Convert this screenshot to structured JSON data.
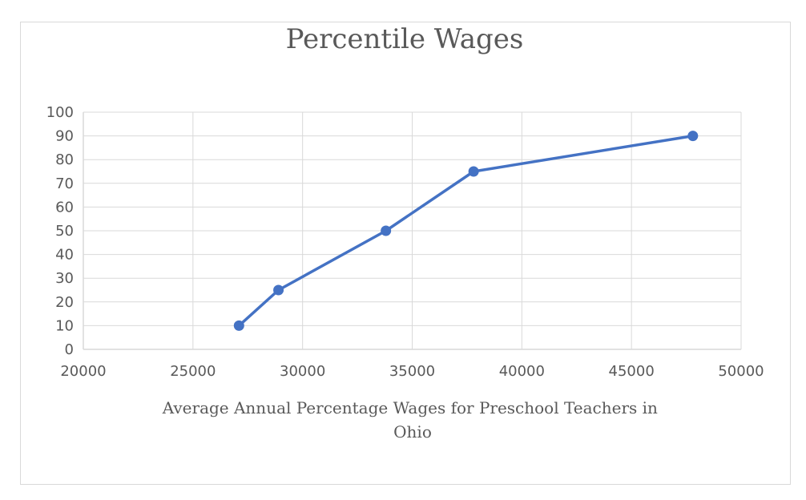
{
  "chart_data": {
    "type": "scatter",
    "title": "Percentile Wages",
    "xlabel": "Average Annual Percentage Wages for Preschool Teachers in Ohio",
    "ylabel": "",
    "xlim": [
      20000,
      50000
    ],
    "ylim": [
      0,
      100
    ],
    "x_ticks": [
      "20000",
      "25000",
      "30000",
      "35000",
      "40000",
      "45000",
      "50000"
    ],
    "y_ticks": [
      "0",
      "10",
      "20",
      "30",
      "40",
      "50",
      "60",
      "70",
      "80",
      "90",
      "100"
    ],
    "grid": true,
    "legend": "none",
    "color": "#4472c4",
    "series": [
      {
        "x": [
          27100,
          28900,
          33800,
          37800,
          47800
        ],
        "y": [
          10,
          25,
          50,
          75,
          90
        ]
      }
    ]
  }
}
